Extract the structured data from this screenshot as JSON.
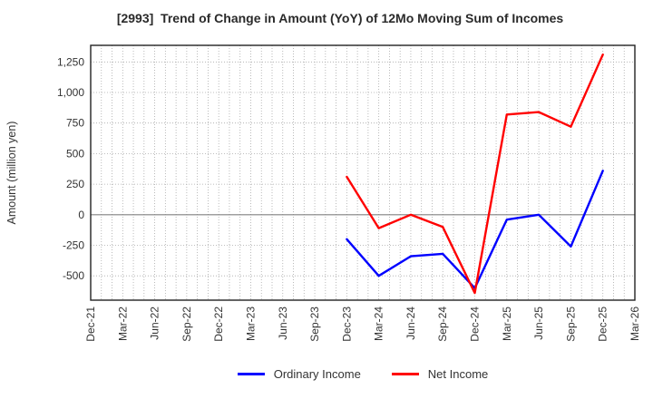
{
  "title": "[2993]  Trend of Change in Amount (YoY) of 12Mo Moving Sum of Incomes",
  "chart_data": {
    "type": "line",
    "title": "[2993]  Trend of Change in Amount (YoY) of 12Mo Moving Sum of Incomes",
    "xlabel": "",
    "ylabel": "Amount (million yen)",
    "categories": [
      "Dec-21",
      "Mar-22",
      "Jun-22",
      "Sep-22",
      "Dec-22",
      "Mar-23",
      "Jun-23",
      "Sep-23",
      "Dec-23",
      "Mar-24",
      "Jun-24",
      "Sep-24",
      "Dec-24",
      "Mar-25",
      "Jun-25",
      "Sep-25",
      "Dec-25",
      "Mar-26"
    ],
    "series": [
      {
        "name": "Ordinary Income",
        "color": "#0000ff",
        "values": [
          null,
          null,
          null,
          null,
          null,
          null,
          null,
          null,
          -200,
          -500,
          -340,
          -320,
          -600,
          -40,
          0,
          -260,
          360,
          null
        ]
      },
      {
        "name": "Net Income",
        "color": "#ff0000",
        "values": [
          null,
          null,
          null,
          null,
          null,
          null,
          null,
          null,
          310,
          -110,
          0,
          -100,
          -640,
          820,
          840,
          720,
          1310,
          null
        ]
      }
    ],
    "yticks": [
      -500,
      -250,
      0,
      250,
      500,
      750,
      1000,
      1250
    ],
    "ytick_labels": [
      "-500",
      "-250",
      "0",
      "250",
      "500",
      "750",
      "1,000",
      "1,250"
    ],
    "ylim": [
      -700,
      1390
    ],
    "grid": true,
    "minor_x_gridlines_per_interval": 3,
    "legend_position": "bottom"
  },
  "colors": {
    "grid": "#aaaaaa",
    "zero_line": "#808080",
    "border": "#222222",
    "tick_text": "#333333",
    "title_text": "#2a2a2a"
  }
}
